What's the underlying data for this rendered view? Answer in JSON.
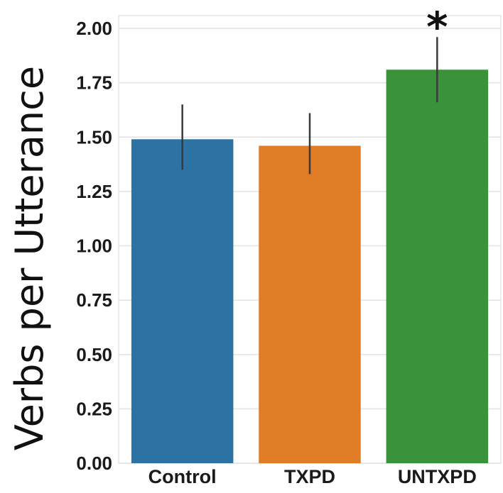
{
  "chart_data": {
    "type": "bar",
    "title": "",
    "xlabel": "",
    "ylabel": "Verbs per Utterance",
    "categories": [
      "Control",
      "TXPD",
      "UNTXPD"
    ],
    "values": [
      1.49,
      1.46,
      1.81
    ],
    "error_bars": [
      {
        "low": 1.35,
        "high": 1.65
      },
      {
        "low": 1.33,
        "high": 1.61
      },
      {
        "low": 1.66,
        "high": 1.96
      }
    ],
    "ylim": [
      0,
      2.08
    ],
    "yticks": [
      "0.00",
      "0.25",
      "0.50",
      "0.75",
      "1.00",
      "1.25",
      "1.50",
      "1.75",
      "2.00"
    ],
    "grid": true,
    "legend": "none",
    "colors": [
      "#2c73a3",
      "#e07b26",
      "#3a923b"
    ],
    "annotations": [
      {
        "category": "UNTXPD",
        "text": "*"
      }
    ]
  }
}
